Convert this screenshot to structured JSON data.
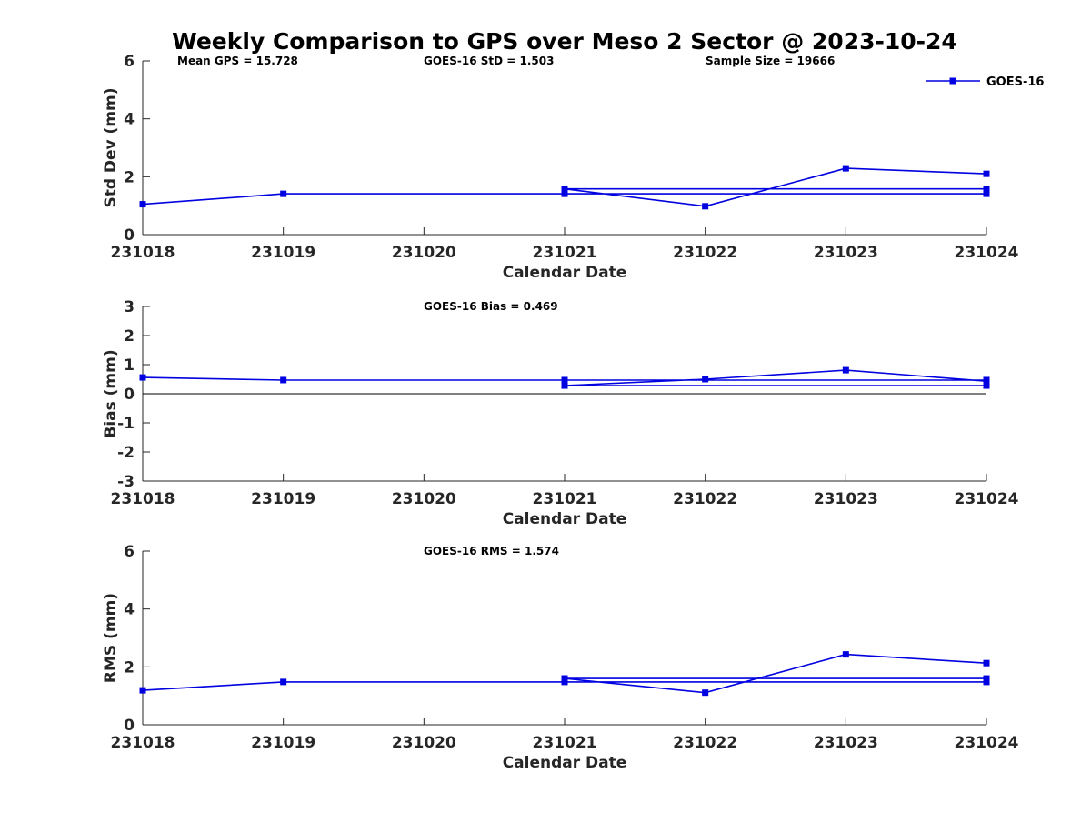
{
  "figure_title": "Weekly Comparison to GPS over Meso 2 Sector @ 2023-10-24",
  "series_color": "#0000e0",
  "legend": {
    "label": "GOES-16",
    "placement": "top-right"
  },
  "chart_data": [
    {
      "type": "line",
      "name": "std",
      "ylabel": "Std Dev (mm)",
      "xlabel": "Calendar Date",
      "annotations": [
        "Mean GPS = 15.728",
        "GOES-16 StD = 1.503",
        "Sample Size = 19666"
      ],
      "categories": [
        "231018",
        "231019",
        "231020",
        "231021",
        "231022",
        "231023",
        "231024"
      ],
      "ylim": [
        0,
        6
      ],
      "yticks": [
        0,
        2,
        4,
        6
      ],
      "zero_line": false,
      "series": [
        {
          "name": "GOES-16",
          "points": [
            {
              "x": "231018",
              "y": 1.05
            },
            {
              "x": "231019",
              "y": 1.41
            },
            {
              "x": "231024",
              "y": 1.41
            },
            {
              "x": "231021",
              "y": 1.41
            },
            {
              "x": "231021",
              "y": 1.58
            },
            {
              "x": "231024",
              "y": 1.58
            },
            {
              "x": "231021",
              "y": 1.58
            },
            {
              "x": "231022",
              "y": 0.98
            },
            {
              "x": "231023",
              "y": 2.29
            },
            {
              "x": "231024",
              "y": 2.1
            }
          ]
        }
      ]
    },
    {
      "type": "line",
      "name": "bias",
      "ylabel": "Bias (mm)",
      "xlabel": "Calendar Date",
      "annotations": [
        "GOES-16 Bias  = 0.469"
      ],
      "categories": [
        "231018",
        "231019",
        "231020",
        "231021",
        "231022",
        "231023",
        "231024"
      ],
      "ylim": [
        -3,
        3
      ],
      "yticks": [
        -3,
        -2,
        -1,
        0,
        1,
        2,
        3
      ],
      "zero_line": true,
      "series": [
        {
          "name": "GOES-16",
          "points": [
            {
              "x": "231018",
              "y": 0.56
            },
            {
              "x": "231019",
              "y": 0.47
            },
            {
              "x": "231024",
              "y": 0.47
            },
            {
              "x": "231021",
              "y": 0.47
            },
            {
              "x": "231021",
              "y": 0.28
            },
            {
              "x": "231024",
              "y": 0.28
            },
            {
              "x": "231021",
              "y": 0.28
            },
            {
              "x": "231022",
              "y": 0.5
            },
            {
              "x": "231023",
              "y": 0.81
            },
            {
              "x": "231024",
              "y": 0.43
            }
          ]
        }
      ]
    },
    {
      "type": "line",
      "name": "rms",
      "ylabel": "RMS (mm)",
      "xlabel": "Calendar Date",
      "annotations": [
        "GOES-16 RMS = 1.574"
      ],
      "categories": [
        "231018",
        "231019",
        "231020",
        "231021",
        "231022",
        "231023",
        "231024"
      ],
      "ylim": [
        0,
        6
      ],
      "yticks": [
        0,
        2,
        4,
        6
      ],
      "zero_line": false,
      "series": [
        {
          "name": "GOES-16",
          "points": [
            {
              "x": "231018",
              "y": 1.19
            },
            {
              "x": "231019",
              "y": 1.48
            },
            {
              "x": "231024",
              "y": 1.48
            },
            {
              "x": "231021",
              "y": 1.48
            },
            {
              "x": "231021",
              "y": 1.6
            },
            {
              "x": "231024",
              "y": 1.6
            },
            {
              "x": "231021",
              "y": 1.6
            },
            {
              "x": "231022",
              "y": 1.11
            },
            {
              "x": "231023",
              "y": 2.43
            },
            {
              "x": "231024",
              "y": 2.13
            }
          ]
        }
      ]
    }
  ]
}
